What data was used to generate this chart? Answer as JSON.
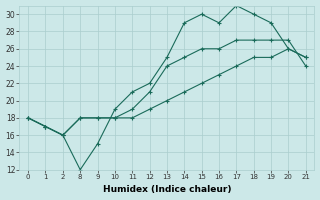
{
  "xlabel": "Humidex (Indice chaleur)",
  "bg_color": "#cce8e8",
  "line_color": "#1a6b5a",
  "grid_color": "#aacece",
  "xtick_labels": [
    "0",
    "1",
    "2",
    "8",
    "9",
    "10",
    "11",
    "12",
    "13",
    "14",
    "15",
    "16",
    "17",
    "18",
    "19",
    "20",
    "21"
  ],
  "line1_y": [
    18,
    17,
    16,
    12,
    15,
    19,
    21,
    22,
    25,
    29,
    30,
    29,
    31,
    30,
    29,
    26,
    25
  ],
  "line2_y": [
    18,
    17,
    16,
    18,
    18,
    18,
    19,
    21,
    24,
    25,
    26,
    26,
    27,
    27,
    27,
    27,
    24
  ],
  "line3_y": [
    18,
    17,
    16,
    18,
    18,
    18,
    18,
    19,
    20,
    21,
    22,
    23,
    24,
    25,
    25,
    26,
    25
  ],
  "ylim": [
    12,
    31
  ],
  "yticks": [
    12,
    14,
    16,
    18,
    20,
    22,
    24,
    26,
    28,
    30
  ],
  "figsize": [
    3.2,
    2.0
  ],
  "dpi": 100
}
